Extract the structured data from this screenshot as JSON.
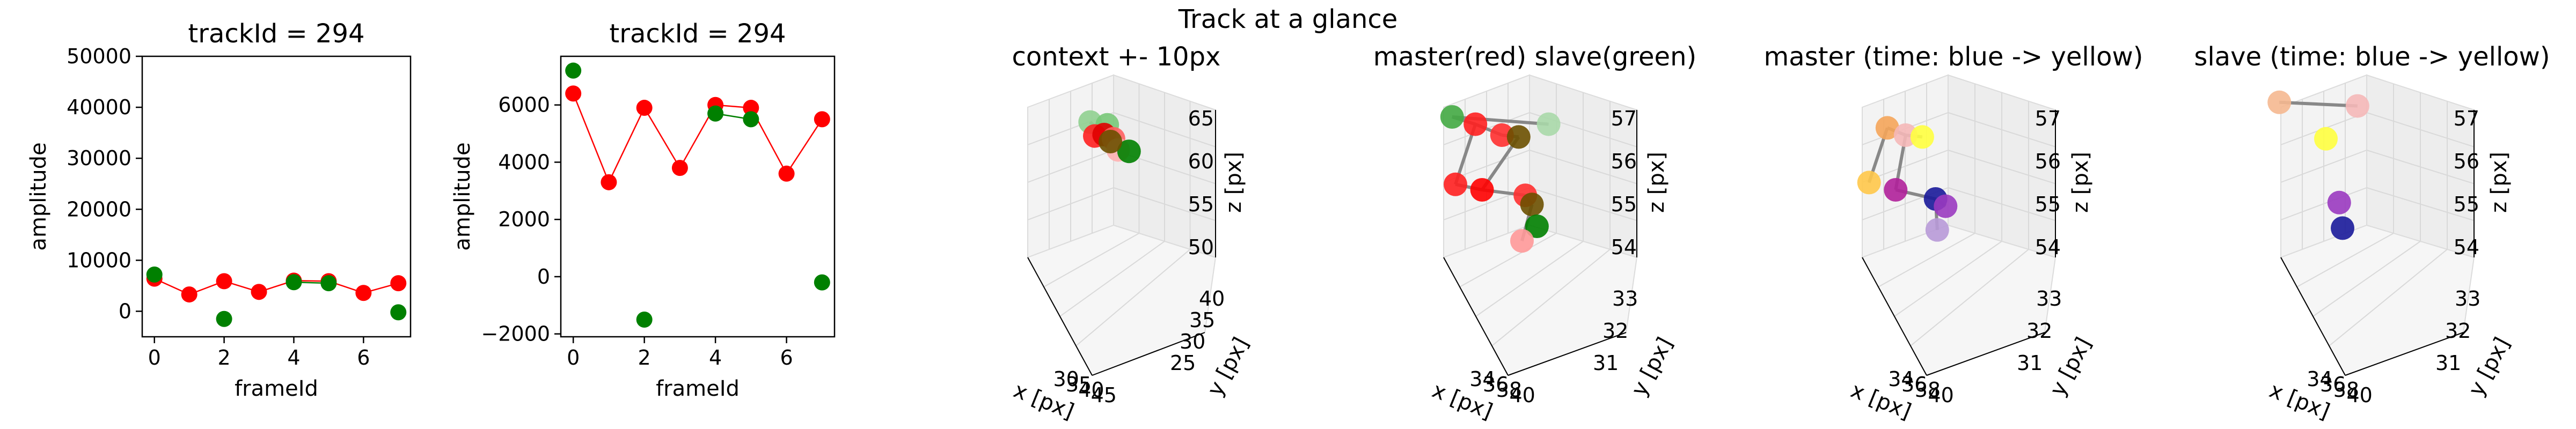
{
  "suptitle": "Track at a glance",
  "chart_data": [
    {
      "type": "line",
      "title": "trackId = 294",
      "xlabel": "frameId",
      "ylabel": "amplitude",
      "xlim": [
        -0.35,
        7.35
      ],
      "ylim": [
        -5000,
        50000
      ],
      "xticks": [
        0,
        2,
        4,
        6
      ],
      "yticks": [
        0,
        10000,
        20000,
        30000,
        40000,
        50000
      ],
      "series": [
        {
          "color": "#ff0000",
          "style": "line+markers",
          "x": [
            0,
            1,
            2,
            3,
            4,
            5,
            6,
            7
          ],
          "y": [
            6400,
            3300,
            5900,
            3800,
            6000,
            5900,
            3600,
            5500
          ]
        },
        {
          "color": "#008000",
          "style": "line+markers",
          "segments": [
            [
              4,
              5
            ]
          ],
          "x": [
            0,
            2,
            4,
            5,
            7
          ],
          "y": [
            7200,
            -1500,
            5700,
            5500,
            -200
          ]
        }
      ]
    },
    {
      "type": "line",
      "title": "trackId = 294",
      "xlabel": "frameId",
      "ylabel": "amplitude",
      "xlim": [
        -0.35,
        7.35
      ],
      "ylim": [
        -2100,
        7700
      ],
      "xticks": [
        0,
        2,
        4,
        6
      ],
      "yticks": [
        -2000,
        0,
        2000,
        4000,
        6000
      ],
      "series": [
        {
          "color": "#ff0000",
          "style": "line+markers",
          "x": [
            0,
            1,
            2,
            3,
            4,
            5,
            6,
            7
          ],
          "y": [
            6400,
            3300,
            5900,
            3800,
            6000,
            5900,
            3600,
            5500
          ]
        },
        {
          "color": "#008000",
          "style": "line+markers",
          "segments": [
            [
              4,
              5
            ]
          ],
          "x": [
            0,
            2,
            4,
            5,
            7
          ],
          "y": [
            7200,
            -1500,
            5700,
            5500,
            -200
          ]
        }
      ]
    },
    {
      "type": "scatter3d",
      "title": "context +- 10px",
      "xlabel": "x [px]",
      "ylabel": "y [px]",
      "zlabel": "z [px]",
      "xticks": [
        "30",
        "35",
        "40",
        "45"
      ],
      "yticks": [
        "25",
        "30",
        "35",
        "40"
      ],
      "zticks": [
        "50",
        "55",
        "60",
        "65"
      ],
      "points": [
        {
          "x": 0.47,
          "y": 0.26,
          "color": "#90d090"
        },
        {
          "x": 0.58,
          "y": 0.28,
          "color": "#78c878"
        },
        {
          "x": 0.5,
          "y": 0.36,
          "color": "#ff2020"
        },
        {
          "x": 0.56,
          "y": 0.35,
          "color": "#e00000"
        },
        {
          "x": 0.62,
          "y": 0.38,
          "color": "#ff6060"
        },
        {
          "x": 0.65,
          "y": 0.46,
          "color": "#ffb0b0"
        },
        {
          "x": 0.72,
          "y": 0.47,
          "color": "#008000"
        },
        {
          "x": 0.6,
          "y": 0.4,
          "color": "#6b5000"
        }
      ],
      "lines": [
        [
          0,
          3
        ],
        [
          3,
          4
        ],
        [
          4,
          7
        ],
        [
          1,
          7
        ]
      ]
    },
    {
      "type": "scatter3d",
      "title": "master(red) slave(green)",
      "xlabel": "x [px]",
      "ylabel": "y [px]",
      "zlabel": "z [px]",
      "xticks": [
        "34",
        "36",
        "38",
        "40"
      ],
      "yticks": [
        "31",
        "32",
        "33"
      ],
      "zticks": [
        "54",
        "55",
        "56",
        "57"
      ],
      "points": [
        {
          "x": 0.18,
          "y": 0.2,
          "color": "#44aa44"
        },
        {
          "x": 0.32,
          "y": 0.24,
          "color": "#ff2020"
        },
        {
          "x": 0.48,
          "y": 0.3,
          "color": "#ff3030"
        },
        {
          "x": 0.58,
          "y": 0.31,
          "color": "#6b5000"
        },
        {
          "x": 0.76,
          "y": 0.24,
          "color": "#a8d8a8"
        },
        {
          "x": 0.2,
          "y": 0.57,
          "color": "#ff2020"
        },
        {
          "x": 0.36,
          "y": 0.6,
          "color": "#ff0000"
        },
        {
          "x": 0.62,
          "y": 0.63,
          "color": "#ff3030"
        },
        {
          "x": 0.66,
          "y": 0.68,
          "color": "#6b5000"
        },
        {
          "x": 0.69,
          "y": 0.8,
          "color": "#008000"
        },
        {
          "x": 0.6,
          "y": 0.88,
          "color": "#ff9999"
        }
      ],
      "lines": [
        [
          0,
          1
        ],
        [
          1,
          2
        ],
        [
          2,
          3
        ],
        [
          0,
          4
        ],
        [
          1,
          5
        ],
        [
          5,
          6
        ],
        [
          3,
          6
        ],
        [
          6,
          7
        ],
        [
          7,
          8
        ],
        [
          8,
          10
        ]
      ]
    },
    {
      "type": "scatter3d",
      "title": "master (time: blue -> yellow)",
      "xlabel": "x [px]",
      "ylabel": "y [px]",
      "zlabel": "z [px]",
      "xticks": [
        "34",
        "36",
        "38",
        "40"
      ],
      "yticks": [
        "31",
        "32",
        "33"
      ],
      "zticks": [
        "54",
        "55",
        "56",
        "57"
      ],
      "points": [
        {
          "x": 0.28,
          "y": 0.26,
          "color": "#f5a55a"
        },
        {
          "x": 0.39,
          "y": 0.3,
          "color": "#f5b8b8"
        },
        {
          "x": 0.49,
          "y": 0.31,
          "color": "#ffff40"
        },
        {
          "x": 0.17,
          "y": 0.56,
          "color": "#ffc84a"
        },
        {
          "x": 0.33,
          "y": 0.6,
          "color": "#b0209a"
        },
        {
          "x": 0.57,
          "y": 0.65,
          "color": "#1a1a9a"
        },
        {
          "x": 0.63,
          "y": 0.69,
          "color": "#9a3ac0"
        },
        {
          "x": 0.58,
          "y": 0.82,
          "color": "#b89ad8"
        }
      ],
      "lines": [
        [
          0,
          1
        ],
        [
          1,
          2
        ],
        [
          0,
          3
        ],
        [
          1,
          4
        ],
        [
          4,
          5
        ],
        [
          5,
          6
        ],
        [
          5,
          7
        ]
      ]
    },
    {
      "type": "scatter3d",
      "title": "slave (time: blue -> yellow)",
      "xlabel": "x [px]",
      "ylabel": "y [px]",
      "zlabel": "z [px]",
      "xticks": [
        "34",
        "36",
        "38",
        "40"
      ],
      "yticks": [
        "31",
        "32",
        "33"
      ],
      "zticks": [
        "54",
        "55",
        "56",
        "57"
      ],
      "points": [
        {
          "x": 0.12,
          "y": 0.12,
          "color": "#f5b890"
        },
        {
          "x": 0.59,
          "y": 0.14,
          "color": "#f5b8b8"
        },
        {
          "x": 0.4,
          "y": 0.32,
          "color": "#ffff40"
        },
        {
          "x": 0.48,
          "y": 0.67,
          "color": "#9a3ac0"
        },
        {
          "x": 0.5,
          "y": 0.81,
          "color": "#1a1a9a"
        }
      ],
      "lines": [
        [
          0,
          1
        ]
      ]
    }
  ]
}
